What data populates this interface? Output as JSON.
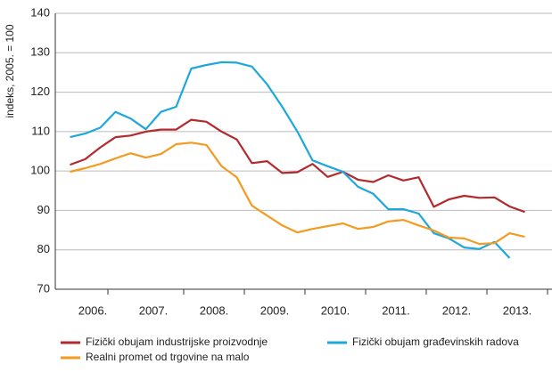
{
  "chart_data": {
    "type": "line",
    "y_label": "indeks, 2005. = 100",
    "x": [
      2006.125,
      2006.375,
      2006.625,
      2006.875,
      2007.125,
      2007.375,
      2007.625,
      2007.875,
      2008.125,
      2008.375,
      2008.625,
      2008.875,
      2009.125,
      2009.375,
      2009.625,
      2009.875,
      2010.125,
      2010.375,
      2010.625,
      2010.875,
      2011.125,
      2011.375,
      2011.625,
      2011.875,
      2012.125,
      2012.375,
      2012.625,
      2012.875,
      2013.125,
      2013.375,
      2013.625
    ],
    "series": [
      {
        "name": "Fizički obujam industrijske proizvodnje",
        "color": "#b22a2e",
        "values": [
          101.6,
          103,
          106,
          108.6,
          109,
          110,
          110.5,
          110.5,
          113,
          112.5,
          110,
          108,
          102,
          102.5,
          99.5,
          99.7,
          101.8,
          98.5,
          99.8,
          97.8,
          97.2,
          98.9,
          97.6,
          98.4,
          90.9,
          92.8,
          93.7,
          93.2,
          93.3,
          91,
          89.6
        ]
      },
      {
        "name": "Fizički obujam građevinskih radova",
        "color": "#1ea7dc",
        "values": [
          108.6,
          109.5,
          111,
          115,
          113.3,
          110.6,
          115,
          116.3,
          126,
          126.9,
          127.6,
          127.5,
          126.5,
          122,
          116.3,
          110,
          102.7,
          101.2,
          99.8,
          96,
          94.2,
          90.3,
          90.3,
          89.2,
          84.2,
          82.9,
          80.6,
          80.2,
          82,
          77.9,
          null
        ]
      },
      {
        "name": "Realni promet od trgovine na malo",
        "color": "#f39b21",
        "values": [
          99.8,
          100.7,
          101.8,
          103.2,
          104.5,
          103.4,
          104.3,
          106.8,
          107.2,
          106.6,
          101.2,
          98.4,
          91.2,
          88.7,
          86.2,
          84.4,
          85.3,
          86,
          86.7,
          85.3,
          85.8,
          87.2,
          87.6,
          86.2,
          84.9,
          83.1,
          82.9,
          81.5,
          81.7,
          84.2,
          83.3
        ]
      }
    ],
    "xlim": [
      2006,
      2014
    ],
    "xticks": [
      {
        "value": 2006.5,
        "label": "2006."
      },
      {
        "value": 2007.5,
        "label": "2007."
      },
      {
        "value": 2008.5,
        "label": "2008."
      },
      {
        "value": 2009.5,
        "label": "2009."
      },
      {
        "value": 2010.5,
        "label": "2010."
      },
      {
        "value": 2011.5,
        "label": "2011."
      },
      {
        "value": 2012.5,
        "label": "2012."
      },
      {
        "value": 2013.5,
        "label": "2013."
      }
    ],
    "ylim": [
      70,
      140
    ],
    "yticks": [
      70,
      80,
      90,
      100,
      110,
      120,
      130,
      140
    ],
    "grid": true
  }
}
